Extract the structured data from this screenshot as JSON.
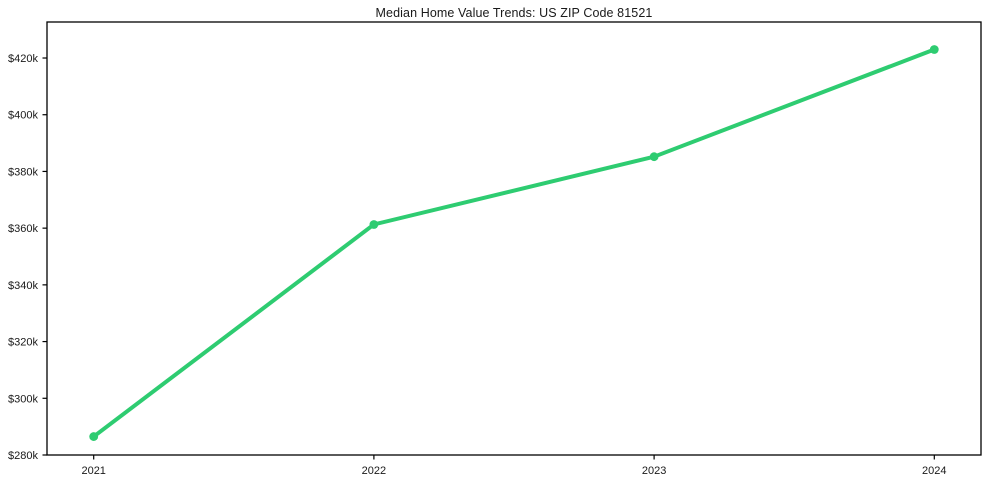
{
  "chart_data": {
    "type": "line",
    "title": "Median Home Value Trends: US ZIP Code 81521",
    "x": [
      "2021",
      "2022",
      "2023",
      "2024"
    ],
    "series": [
      {
        "name": "Median Home Value",
        "values": [
          286500,
          361300,
          385200,
          423000
        ],
        "color": "#2ecc71"
      }
    ],
    "xlabel": "",
    "ylabel": "",
    "xtick_labels": [
      "2021",
      "2022",
      "2023",
      "2024"
    ],
    "yticks": [
      280000,
      300000,
      320000,
      340000,
      360000,
      380000,
      400000,
      420000
    ],
    "ytick_labels": [
      "$280k",
      "$300k",
      "$320k",
      "$340k",
      "$360k",
      "$380k",
      "$400k",
      "$420k"
    ],
    "ylim": [
      280000,
      432700
    ],
    "grid": false,
    "legend": "none",
    "background": "#ffffff",
    "axis_color": "#000000",
    "marker": "circle"
  }
}
